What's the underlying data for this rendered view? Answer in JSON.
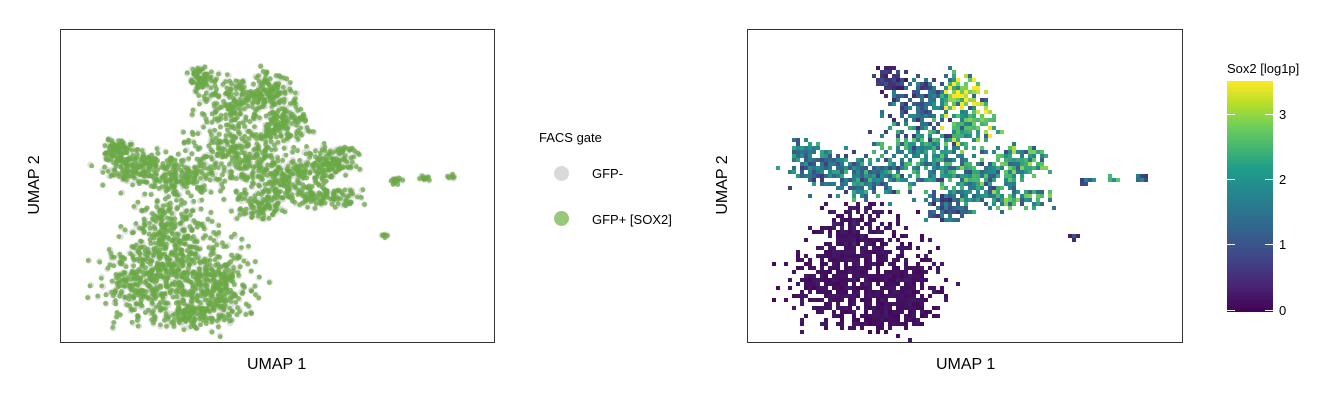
{
  "chart_data": [
    {
      "type": "scatter",
      "xlabel": "UMAP 1",
      "ylabel": "UMAP 2",
      "legend": {
        "title": "FACS gate",
        "placement": "right",
        "entries": [
          {
            "label": "GFP-",
            "color": "#d3d3d3"
          },
          {
            "label": "GFP+ [SOX2]",
            "color": "#98c87a"
          }
        ]
      },
      "series": [
        {
          "name": "GFP-",
          "color": "#c9c9c9"
        },
        {
          "name": "GFP+ [SOX2]",
          "color": "#6aaa44"
        }
      ],
      "grid": false
    },
    {
      "type": "heatmap",
      "xlabel": "UMAP 1",
      "ylabel": "UMAP 2",
      "colorbar": {
        "title": "Sox2 [log1p]",
        "ticks": [
          "3",
          "2",
          "1",
          "0"
        ],
        "tick_values": [
          3,
          2,
          1,
          0
        ],
        "range": [
          0,
          3.5
        ],
        "colormap": "viridis"
      },
      "grid": false
    }
  ]
}
